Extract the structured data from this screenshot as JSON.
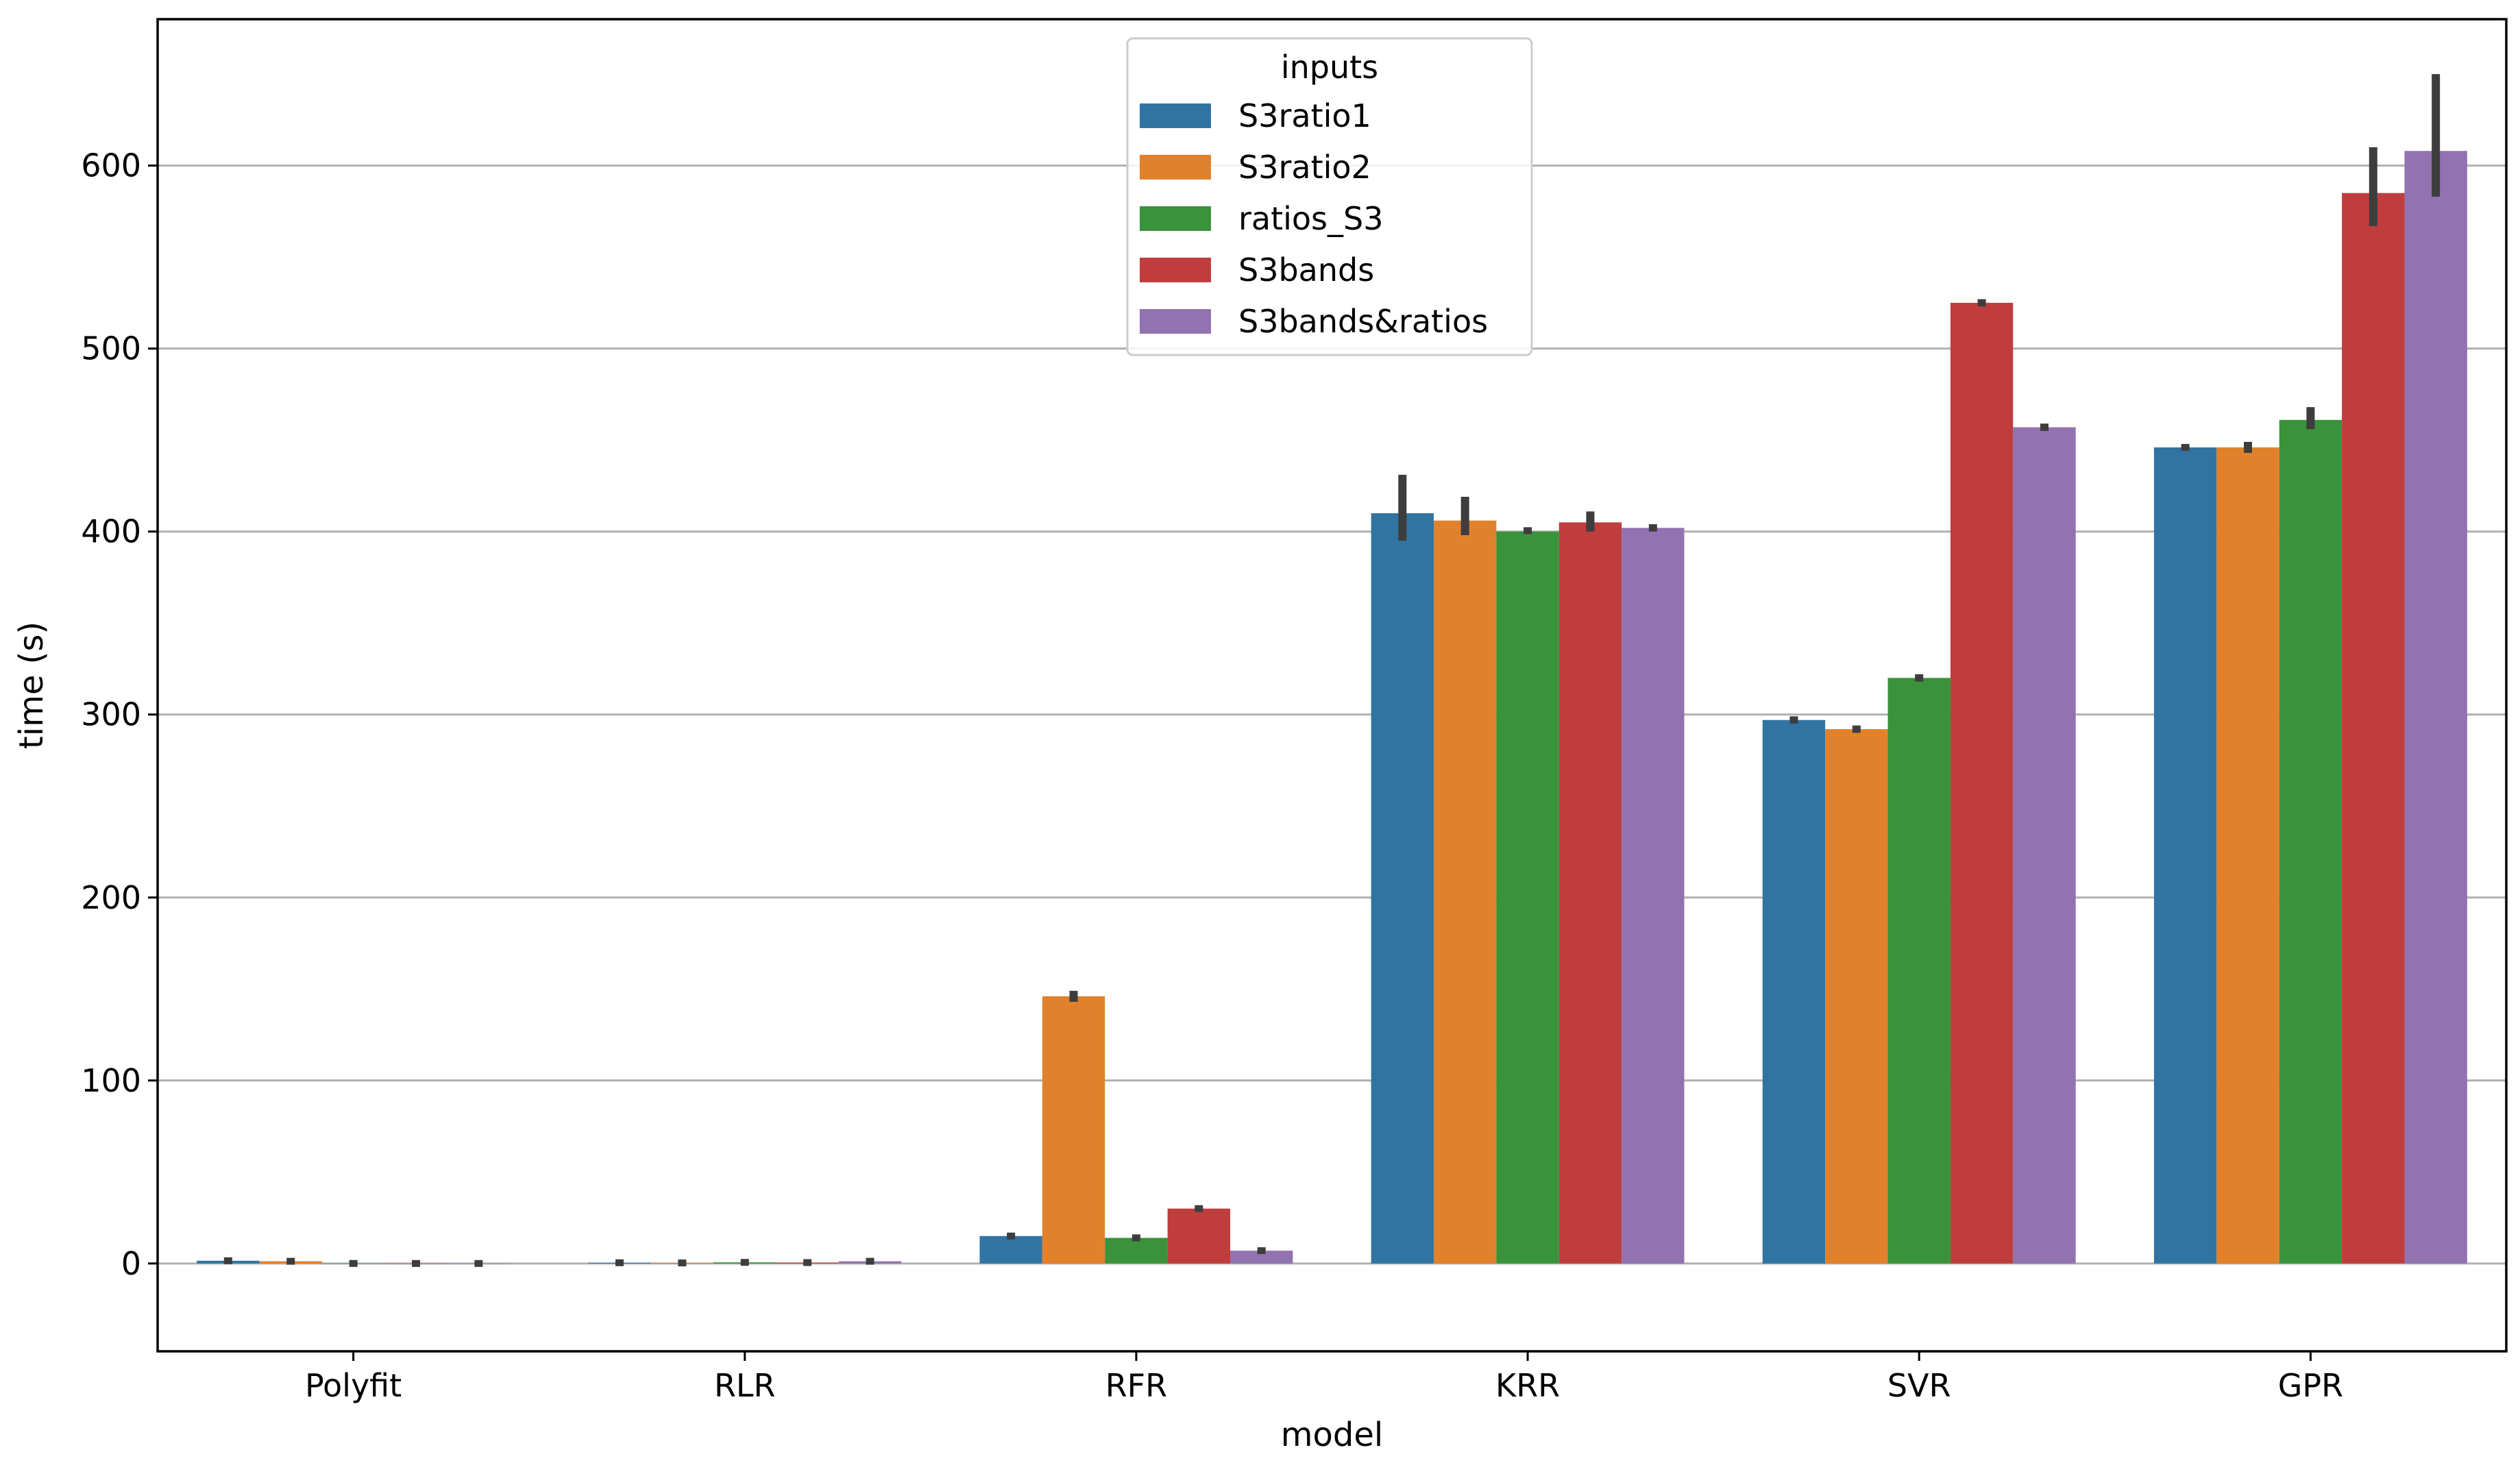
{
  "chart_data": {
    "type": "bar",
    "title": "",
    "xlabel": "model",
    "ylabel": "time (s)",
    "ylim": [
      -48,
      680
    ],
    "yticks": [
      0,
      100,
      200,
      300,
      400,
      500,
      600
    ],
    "categories": [
      "Polyfit",
      "RLR",
      "RFR",
      "KRR",
      "SVR",
      "GPR"
    ],
    "legend": {
      "title": "inputs",
      "position": "top-center"
    },
    "series": [
      {
        "name": "S3ratio1",
        "color": "#3274a1",
        "values": [
          1.5,
          0.4,
          15,
          410,
          297,
          446
        ],
        "err_low": [
          0.5,
          0.2,
          13.5,
          395,
          295,
          445
        ],
        "err_high": [
          2.5,
          0.6,
          16.5,
          431,
          299,
          447
        ]
      },
      {
        "name": "S3ratio2",
        "color": "#e1812c",
        "values": [
          1.2,
          0.3,
          146,
          406,
          292,
          446
        ],
        "err_low": [
          0.4,
          0.1,
          143,
          398,
          290,
          443
        ],
        "err_high": [
          2.0,
          0.5,
          149,
          419,
          294,
          449
        ]
      },
      {
        "name": "ratios_S3",
        "color": "#3a923a",
        "values": [
          0,
          0.6,
          14,
          400,
          320,
          461
        ],
        "err_low": [
          0,
          0.3,
          12.5,
          399,
          318,
          456
        ],
        "err_high": [
          0,
          0.9,
          15.5,
          402,
          322,
          468
        ]
      },
      {
        "name": "S3bands",
        "color": "#c03d3e",
        "values": [
          0,
          0.5,
          30,
          405,
          525,
          585
        ],
        "err_low": [
          0,
          0.2,
          28.5,
          400,
          523,
          567
        ],
        "err_high": [
          0,
          0.8,
          31.5,
          411,
          527,
          610
        ]
      },
      {
        "name": "S3bands&ratios",
        "color": "#9372b2",
        "values": [
          0,
          1.2,
          7,
          402,
          457,
          608
        ],
        "err_low": [
          0,
          0.6,
          5.5,
          400,
          455,
          583
        ],
        "err_high": [
          0,
          1.8,
          8.5,
          404,
          459,
          650
        ]
      }
    ],
    "grid": "y"
  }
}
